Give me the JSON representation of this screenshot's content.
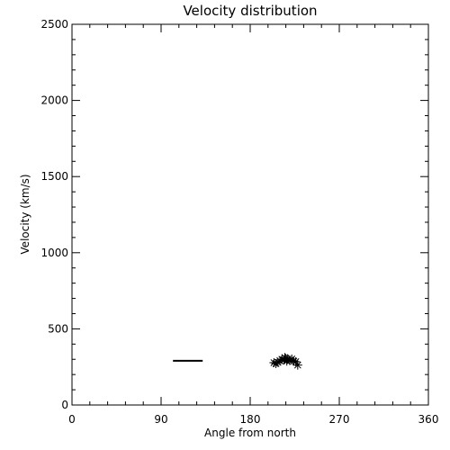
{
  "chart_data": {
    "type": "scatter",
    "title": "Velocity distribution",
    "xlabel": "Angle from north",
    "ylabel": "Velocity (km/s)",
    "xlim": [
      0,
      360
    ],
    "ylim": [
      0,
      2500
    ],
    "xticks": [
      0,
      90,
      180,
      270,
      360
    ],
    "yticks": [
      0,
      500,
      1000,
      1500,
      2000,
      2500
    ],
    "grid": false,
    "series": [
      {
        "marker": "asterisk",
        "points": [
          [
            204,
            278
          ],
          [
            206,
            272
          ],
          [
            208,
            280
          ],
          [
            210,
            290
          ],
          [
            212,
            300
          ],
          [
            214,
            296
          ],
          [
            216,
            306
          ],
          [
            218,
            300
          ],
          [
            220,
            292
          ],
          [
            222,
            302
          ],
          [
            224,
            288
          ],
          [
            226,
            284
          ],
          [
            228,
            262
          ],
          [
            215,
            312
          ],
          [
            217,
            288
          ]
        ]
      }
    ],
    "lines": [
      {
        "x": [
          102,
          132
        ],
        "y": [
          290,
          290
        ]
      }
    ]
  }
}
